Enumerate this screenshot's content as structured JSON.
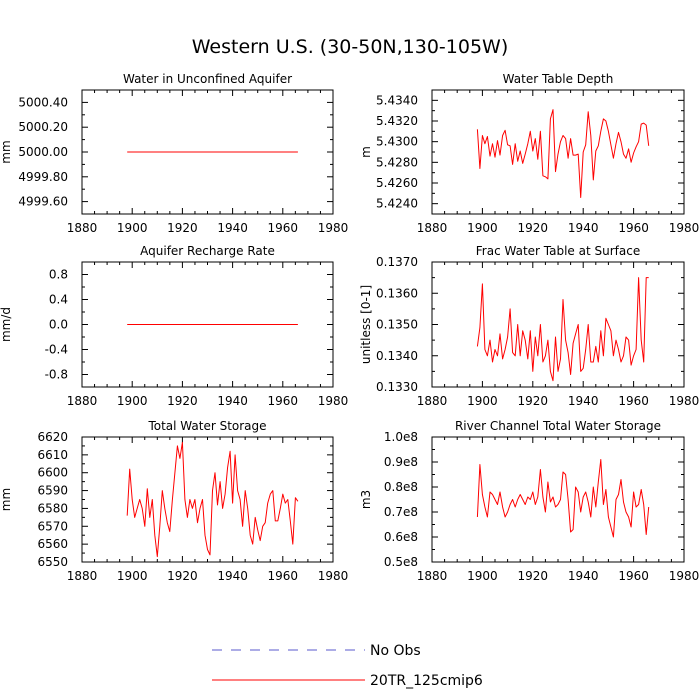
{
  "title": "Western U.S. (30-50N,130-105W)",
  "legend": [
    {
      "label": "No Obs",
      "color": "#5a5acc",
      "dash": true
    },
    {
      "label": "20TR_125cmip6",
      "color": "#ff0000",
      "dash": false
    }
  ],
  "chart_data": [
    {
      "type": "line",
      "title": "Water in Unconfined Aquifer",
      "ylabel": "mm",
      "xlim": [
        1880,
        1980
      ],
      "ylim": [
        4999.5,
        5000.5
      ],
      "xticks": [
        "1880",
        "1900",
        "1920",
        "1940",
        "1960",
        "1980"
      ],
      "yticks": [
        4999.6,
        4999.8,
        5000.0,
        5000.2,
        5000.4
      ],
      "ytick_labels": [
        "4999.60",
        "4999.80",
        "5000.00",
        "5000.20",
        "5000.40"
      ],
      "series": [
        {
          "name": "20TR_125cmip6",
          "color": "#ff0000",
          "x_start": 1898,
          "x_step": 1,
          "values": [
            5000.0,
            5000.0,
            5000.0,
            5000.0,
            5000.0,
            5000.0,
            5000.0,
            5000.0,
            5000.0,
            5000.0,
            5000.0,
            5000.0,
            5000.0,
            5000.0,
            5000.0,
            5000.0,
            5000.0,
            5000.0,
            5000.0,
            5000.0,
            5000.0,
            5000.0,
            5000.0,
            5000.0,
            5000.0,
            5000.0,
            5000.0,
            5000.0,
            5000.0,
            5000.0,
            5000.0,
            5000.0,
            5000.0,
            5000.0,
            5000.0,
            5000.0,
            5000.0,
            5000.0,
            5000.0,
            5000.0,
            5000.0,
            5000.0,
            5000.0,
            5000.0,
            5000.0,
            5000.0,
            5000.0,
            5000.0,
            5000.0,
            5000.0,
            5000.0,
            5000.0,
            5000.0,
            5000.0,
            5000.0,
            5000.0,
            5000.0,
            5000.0,
            5000.0,
            5000.0,
            5000.0,
            5000.0,
            5000.0,
            5000.0,
            5000.0,
            5000.0,
            5000.0,
            5000.0,
            5000.0
          ]
        }
      ]
    },
    {
      "type": "line",
      "title": "Water Table Depth",
      "ylabel": "m",
      "xlim": [
        1880,
        1980
      ],
      "ylim": [
        5.423,
        5.435
      ],
      "xticks": [
        "1880",
        "1900",
        "1920",
        "1940",
        "1960",
        "1980"
      ],
      "yticks": [
        5.424,
        5.426,
        5.428,
        5.43,
        5.432,
        5.434
      ],
      "ytick_labels": [
        "5.4240",
        "5.4260",
        "5.4280",
        "5.4300",
        "5.4320",
        "5.4340"
      ],
      "series": [
        {
          "name": "20TR_125cmip6",
          "color": "#ff0000",
          "x_start": 1898,
          "x_step": 1,
          "values": [
            5.4312,
            5.4274,
            5.4306,
            5.4298,
            5.4305,
            5.4286,
            5.4298,
            5.4285,
            5.4301,
            5.4287,
            5.4306,
            5.4311,
            5.4297,
            5.4296,
            5.4278,
            5.4298,
            5.4281,
            5.4291,
            5.4279,
            5.4288,
            5.4298,
            5.431,
            5.4291,
            5.4303,
            5.4283,
            5.431,
            5.4267,
            5.4266,
            5.4264,
            5.4322,
            5.4331,
            5.4271,
            5.4288,
            5.43,
            5.4306,
            5.4303,
            5.4284,
            5.4303,
            5.4287,
            5.4287,
            5.4288,
            5.4246,
            5.429,
            5.4297,
            5.4329,
            5.4306,
            5.4263,
            5.4291,
            5.4296,
            5.431,
            5.4322,
            5.432,
            5.431,
            5.4297,
            5.4284,
            5.4298,
            5.4309,
            5.43,
            5.4288,
            5.4284,
            5.4293,
            5.428,
            5.4289,
            5.4295,
            5.43,
            5.4317,
            5.4318,
            5.4316,
            5.4296
          ]
        }
      ]
    },
    {
      "type": "line",
      "title": "Aquifer Recharge Rate",
      "ylabel": "mm/d",
      "xlim": [
        1880,
        1980
      ],
      "ylim": [
        -1.0,
        1.0
      ],
      "xticks": [
        "1880",
        "1900",
        "1920",
        "1940",
        "1960",
        "1980"
      ],
      "yticks": [
        -0.8,
        -0.4,
        0.0,
        0.4,
        0.8
      ],
      "ytick_labels": [
        "-0.8",
        "-0.4",
        "0.0",
        "0.4",
        "0.8"
      ],
      "series": [
        {
          "name": "20TR_125cmip6",
          "color": "#ff0000",
          "x_start": 1898,
          "x_step": 1,
          "values": [
            0.0,
            0.0,
            0.0,
            0.0,
            0.0,
            0.0,
            0.0,
            0.0,
            0.0,
            0.0,
            0.0,
            0.0,
            0.0,
            0.0,
            0.0,
            0.0,
            0.0,
            0.0,
            0.0,
            0.0,
            0.0,
            0.0,
            0.0,
            0.0,
            0.0,
            0.0,
            0.0,
            0.0,
            0.0,
            0.0,
            0.0,
            0.0,
            0.0,
            0.0,
            0.0,
            0.0,
            0.0,
            0.0,
            0.0,
            0.0,
            0.0,
            0.0,
            0.0,
            0.0,
            0.0,
            0.0,
            0.0,
            0.0,
            0.0,
            0.0,
            0.0,
            0.0,
            0.0,
            0.0,
            0.0,
            0.0,
            0.0,
            0.0,
            0.0,
            0.0,
            0.0,
            0.0,
            0.0,
            0.0,
            0.0,
            0.0,
            0.0,
            0.0,
            0.0
          ]
        }
      ]
    },
    {
      "type": "line",
      "title": "Frac Water Table at Surface",
      "ylabel": "unitless [0-1]",
      "xlim": [
        1880,
        1980
      ],
      "ylim": [
        0.133,
        0.137
      ],
      "xticks": [
        "1880",
        "1900",
        "1920",
        "1940",
        "1960",
        "1980"
      ],
      "yticks": [
        0.133,
        0.134,
        0.135,
        0.136,
        0.137
      ],
      "ytick_labels": [
        "0.1330",
        "0.1340",
        "0.1350",
        "0.1360",
        "0.1370"
      ],
      "series": [
        {
          "name": "20TR_125cmip6",
          "color": "#ff0000",
          "x_start": 1898,
          "x_step": 1,
          "values": [
            0.1343,
            0.1349,
            0.1363,
            0.1342,
            0.134,
            0.1345,
            0.1338,
            0.1342,
            0.134,
            0.1347,
            0.1339,
            0.1342,
            0.1346,
            0.1355,
            0.1341,
            0.134,
            0.135,
            0.134,
            0.1348,
            0.1345,
            0.1339,
            0.1348,
            0.1335,
            0.1346,
            0.134,
            0.135,
            0.1338,
            0.134,
            0.1345,
            0.1335,
            0.1332,
            0.1346,
            0.1335,
            0.1339,
            0.1358,
            0.1345,
            0.1341,
            0.1334,
            0.1344,
            0.1347,
            0.135,
            0.1335,
            0.1336,
            0.1342,
            0.135,
            0.1338,
            0.1338,
            0.1343,
            0.1338,
            0.1348,
            0.134,
            0.1352,
            0.135,
            0.1348,
            0.134,
            0.1345,
            0.1342,
            0.1338,
            0.134,
            0.1346,
            0.1345,
            0.1337,
            0.134,
            0.1342,
            0.1365,
            0.1345,
            0.1338,
            0.1365,
            0.1365
          ]
        }
      ]
    },
    {
      "type": "line",
      "title": "Total Water Storage",
      "ylabel": "mm",
      "xlim": [
        1880,
        1980
      ],
      "ylim": [
        6550,
        6620
      ],
      "xticks": [
        "1880",
        "1900",
        "1920",
        "1940",
        "1960",
        "1980"
      ],
      "yticks": [
        6550,
        6560,
        6570,
        6580,
        6590,
        6600,
        6610,
        6620
      ],
      "ytick_labels": [
        "6550",
        "6560",
        "6570",
        "6580",
        "6590",
        "6600",
        "6610",
        "6620"
      ],
      "series": [
        {
          "name": "20TR_125cmip6",
          "color": "#ff0000",
          "x_start": 1898,
          "x_step": 1,
          "values": [
            6576,
            6602,
            6585,
            6575,
            6580,
            6585,
            6580,
            6570,
            6591,
            6575,
            6585,
            6565,
            6553,
            6570,
            6590,
            6580,
            6572,
            6567,
            6585,
            6600,
            6615,
            6608,
            6617,
            6585,
            6575,
            6585,
            6580,
            6585,
            6572,
            6580,
            6585,
            6565,
            6557,
            6554,
            6590,
            6600,
            6582,
            6595,
            6580,
            6588,
            6603,
            6612,
            6583,
            6610,
            6590,
            6585,
            6570,
            6590,
            6580,
            6565,
            6560,
            6575,
            6568,
            6562,
            6570,
            6572,
            6583,
            6588,
            6590,
            6573,
            6573,
            6580,
            6588,
            6583,
            6585,
            6573,
            6560,
            6586,
            6584
          ]
        }
      ]
    },
    {
      "type": "line",
      "title": "River Channel Total Water Storage",
      "ylabel": "m3",
      "xlim": [
        1880,
        1980
      ],
      "ylim": [
        50000000,
        100000000
      ],
      "xticks": [
        "1880",
        "1900",
        "1920",
        "1940",
        "1960",
        "1980"
      ],
      "yticks": [
        50000000,
        60000000,
        70000000,
        80000000,
        90000000,
        100000000
      ],
      "ytick_labels": [
        "0.5e8",
        "0.6e8",
        "0.7e8",
        "0.8e8",
        "0.9e8",
        "1.0e8"
      ],
      "series": [
        {
          "name": "20TR_125cmip6",
          "color": "#ff0000",
          "x_start": 1898,
          "x_step": 1,
          "values": [
            68000000,
            89000000,
            77000000,
            72000000,
            68000000,
            78000000,
            77000000,
            75000000,
            73000000,
            78000000,
            72000000,
            68000000,
            70000000,
            73000000,
            75000000,
            72000000,
            75000000,
            77000000,
            75000000,
            73000000,
            76000000,
            75000000,
            78000000,
            73000000,
            76000000,
            87000000,
            76000000,
            70000000,
            82000000,
            74000000,
            76000000,
            72000000,
            73000000,
            75000000,
            86000000,
            85000000,
            75000000,
            62000000,
            63000000,
            80000000,
            78000000,
            70000000,
            76000000,
            78000000,
            74000000,
            68000000,
            80000000,
            72000000,
            82000000,
            91000000,
            73000000,
            79000000,
            68000000,
            64000000,
            60000000,
            75000000,
            77000000,
            83000000,
            74000000,
            70000000,
            68000000,
            64000000,
            78000000,
            72000000,
            73000000,
            79000000,
            73000000,
            61000000,
            72000000
          ]
        }
      ]
    }
  ]
}
